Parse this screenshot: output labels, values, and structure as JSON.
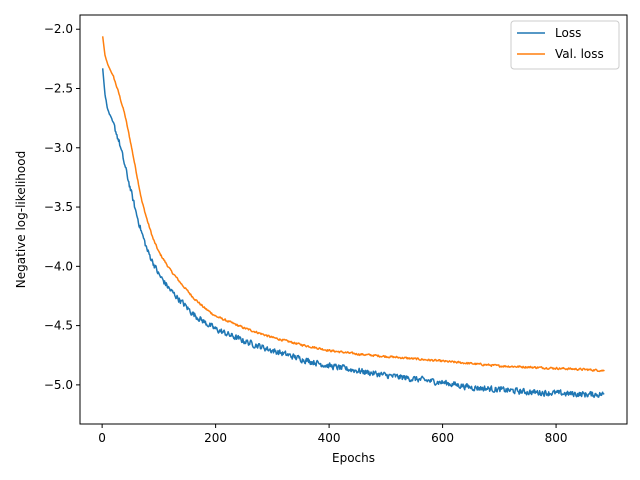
{
  "chart_data": {
    "type": "line",
    "title": "",
    "xlabel": "Epochs",
    "ylabel": "Negative log-likelihood",
    "xlim": [
      -39,
      925
    ],
    "ylim": [
      -5.33,
      -1.88
    ],
    "xticks": [
      0,
      200,
      400,
      600,
      800
    ],
    "xtick_labels": [
      "0",
      "200",
      "400",
      "600",
      "800"
    ],
    "yticks": [
      -2.0,
      -2.5,
      -3.0,
      -3.5,
      -4.0,
      -4.5,
      -5.0
    ],
    "ytick_labels": [
      "−2.0",
      "−2.5",
      "−3.0",
      "−3.5",
      "−4.0",
      "−4.5",
      "−5.0"
    ],
    "grid": false,
    "legend_position": "top-right",
    "series": [
      {
        "name": "Loss",
        "color": "#1f77b4",
        "noise": 0.035,
        "points": [
          [
            1,
            -2.33
          ],
          [
            5,
            -2.55
          ],
          [
            10,
            -2.68
          ],
          [
            20,
            -2.8
          ],
          [
            30,
            -2.95
          ],
          [
            40,
            -3.15
          ],
          [
            50,
            -3.35
          ],
          [
            60,
            -3.55
          ],
          [
            70,
            -3.72
          ],
          [
            80,
            -3.87
          ],
          [
            90,
            -3.97
          ],
          [
            100,
            -4.07
          ],
          [
            120,
            -4.2
          ],
          [
            140,
            -4.3
          ],
          [
            160,
            -4.4
          ],
          [
            180,
            -4.47
          ],
          [
            200,
            -4.53
          ],
          [
            250,
            -4.63
          ],
          [
            300,
            -4.71
          ],
          [
            350,
            -4.78
          ],
          [
            400,
            -4.84
          ],
          [
            450,
            -4.88
          ],
          [
            500,
            -4.92
          ],
          [
            550,
            -4.95
          ],
          [
            600,
            -4.98
          ],
          [
            650,
            -5.02
          ],
          [
            700,
            -5.04
          ],
          [
            750,
            -5.06
          ],
          [
            800,
            -5.07
          ],
          [
            850,
            -5.08
          ],
          [
            885,
            -5.08
          ]
        ]
      },
      {
        "name": "Val. loss",
        "color": "#ff7f0e",
        "noise": 0.012,
        "points": [
          [
            1,
            -2.06
          ],
          [
            5,
            -2.22
          ],
          [
            10,
            -2.3
          ],
          [
            20,
            -2.4
          ],
          [
            30,
            -2.55
          ],
          [
            40,
            -2.72
          ],
          [
            50,
            -2.95
          ],
          [
            60,
            -3.2
          ],
          [
            70,
            -3.45
          ],
          [
            80,
            -3.62
          ],
          [
            90,
            -3.77
          ],
          [
            100,
            -3.88
          ],
          [
            120,
            -4.03
          ],
          [
            140,
            -4.15
          ],
          [
            160,
            -4.26
          ],
          [
            180,
            -4.35
          ],
          [
            200,
            -4.42
          ],
          [
            250,
            -4.52
          ],
          [
            300,
            -4.6
          ],
          [
            350,
            -4.66
          ],
          [
            400,
            -4.71
          ],
          [
            450,
            -4.74
          ],
          [
            500,
            -4.76
          ],
          [
            550,
            -4.78
          ],
          [
            600,
            -4.8
          ],
          [
            650,
            -4.82
          ],
          [
            700,
            -4.84
          ],
          [
            750,
            -4.85
          ],
          [
            800,
            -4.86
          ],
          [
            850,
            -4.87
          ],
          [
            885,
            -4.88
          ]
        ]
      }
    ]
  }
}
